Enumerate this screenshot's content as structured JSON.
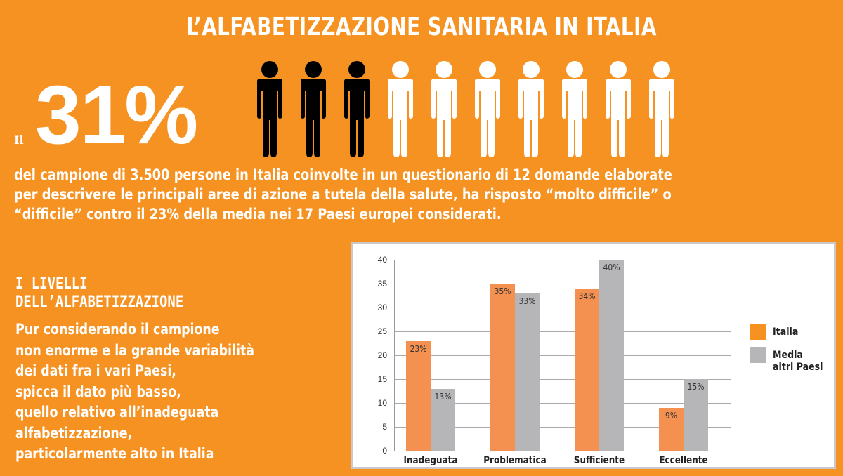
{
  "title": "L’ALFABETIZZAZIONE SANITARIA IN ITALIA",
  "headline": {
    "prefix": "Il",
    "percent": "31%",
    "people_icons": {
      "total": 10,
      "filled": 3.1,
      "filled_color": "#000000",
      "empty_color": "#ffffff"
    },
    "description": "del campione di 3.500 persone in Italia coinvolte in un questionario di 12 domande elaborate\nper descrivere le principali aree di azione a tutela della salute, ha risposto “molto difficile” o\n“difficile” contro il 23% della media nei 17 Paesi europei considerati."
  },
  "levels": {
    "heading": "I LIVELLI\nDELL’ALFABETIZZAZIONE",
    "body": "Pur considerando il campione\nnon enorme e la grande variabilità\ndei dati fra i vari Paesi,\nspicca il dato più basso,\nquello relativo all’inadeguata\nalfabetizzazione,\nparticolarmente alto in Italia"
  },
  "colors": {
    "background": "#f69222",
    "italia": "#f49150",
    "media": "#b6b6b8",
    "legend_italia": "#f69222"
  },
  "chart_data": {
    "type": "bar",
    "title": "",
    "xlabel": "",
    "ylabel": "",
    "categories": [
      "Inadeguata",
      "Problematica",
      "Sufficiente",
      "Eccellente"
    ],
    "series": [
      {
        "name": "Italia",
        "values": [
          23,
          35,
          34,
          9
        ],
        "labels": [
          "23%",
          "35%",
          "34%",
          "9%"
        ]
      },
      {
        "name": "Media altri Paesi",
        "values": [
          13,
          33,
          40,
          15
        ],
        "labels": [
          "13%",
          "33%",
          "40%",
          "15%"
        ]
      }
    ],
    "ylim": [
      0,
      40
    ],
    "yticks": [
      0,
      5,
      10,
      15,
      20,
      25,
      30,
      35,
      40
    ],
    "grid": true,
    "legend_position": "right",
    "legend": [
      "Italia",
      "Media\naltri Paesi"
    ]
  }
}
